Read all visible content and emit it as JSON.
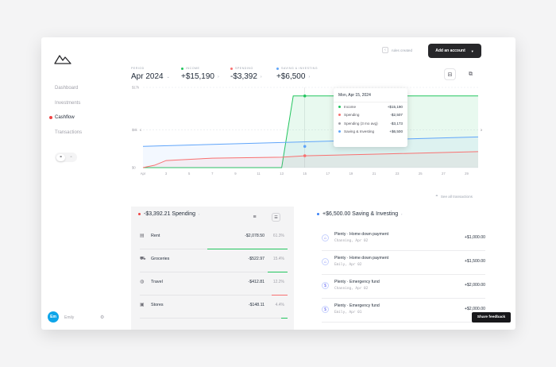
{
  "sidebar": {
    "items": [
      {
        "label": "Dashboard"
      },
      {
        "label": "Investments"
      },
      {
        "label": "Cashflow"
      },
      {
        "label": "Transactions"
      }
    ],
    "user_initials": "Em",
    "user_name": "Emily"
  },
  "topbar": {
    "rules_label": "rules created",
    "add_account_label": "Add an account"
  },
  "header": {
    "period_label": "PERIOD",
    "period_value": "Apr 2024",
    "income_label": "INCOME",
    "income_value": "+$15,190",
    "spending_label": "SPENDING",
    "spending_value": "-$3,392",
    "saving_label": "SAVING & INVESTING",
    "saving_value": "+$6,500"
  },
  "colors": {
    "income": "#22c55e",
    "spending": "#f87171",
    "saving": "#60a5fa",
    "accent": "#0ea5e9"
  },
  "chart_data": {
    "type": "line",
    "ylabels": [
      "$17k",
      "$8k",
      "$0"
    ],
    "x_ticks": [
      "Apr",
      "3",
      "5",
      "7",
      "9",
      "11",
      "13",
      "15",
      "17",
      "19",
      "21",
      "23",
      "25",
      "27",
      "29"
    ],
    "series": [
      {
        "name": "Income",
        "values": [
          [
            1,
            0
          ],
          [
            13,
            0
          ],
          [
            14,
            15190
          ],
          [
            30,
            15190
          ]
        ]
      },
      {
        "name": "Saving & Investing",
        "values": [
          [
            1,
            4500
          ],
          [
            30,
            6500
          ]
        ]
      },
      {
        "name": "Spending",
        "values": [
          [
            1,
            0
          ],
          [
            2,
            500
          ],
          [
            3,
            1500
          ],
          [
            7,
            2000
          ],
          [
            13,
            2200
          ],
          [
            15,
            2507
          ],
          [
            22,
            2900
          ],
          [
            30,
            3392
          ]
        ]
      }
    ],
    "tooltip": {
      "title": "Mon, Apr 15, 2024",
      "rows": [
        {
          "label": "Income",
          "value": "+$15,190"
        },
        {
          "label": "Spending",
          "value": "-$2,507"
        },
        {
          "label": "Spending (3 mo avg)",
          "value": "-$3,173"
        },
        {
          "label": "Saving & Investing",
          "value": "+$6,500"
        }
      ]
    }
  },
  "see_all_label": "See all transactions",
  "spending_panel": {
    "title": "-$3,392.21 Spending",
    "rows": [
      {
        "name": "Rent",
        "amount": "-$2,078.50",
        "pct": "61.3%",
        "fraction": 0.613
      },
      {
        "name": "Groceries",
        "amount": "-$522.97",
        "pct": "15.4%",
        "fraction": 0.154
      },
      {
        "name": "Travel",
        "amount": "-$412.81",
        "pct": "12.2%",
        "fraction": 0.122
      },
      {
        "name": "Stores",
        "amount": "-$148.11",
        "pct": "4.4%",
        "fraction": 0.044
      }
    ]
  },
  "saving_panel": {
    "title": "+$6,500.00 Saving & Investing",
    "rows": [
      {
        "title": "Plenty · Home down payment",
        "sub": "Channing, Apr 02",
        "amount": "+$1,000.00"
      },
      {
        "title": "Plenty · Home down payment",
        "sub": "Emily, Apr 02",
        "amount": "+$1,500.00"
      },
      {
        "title": "Plenty · Emergency fund",
        "sub": "Channing, Apr 02",
        "amount": "+$2,000.00"
      },
      {
        "title": "Plenty · Emergency fund",
        "sub": "Emily, Apr 01",
        "amount": "+$2,000.00"
      }
    ]
  },
  "share_feedback_label": "Share feedback"
}
